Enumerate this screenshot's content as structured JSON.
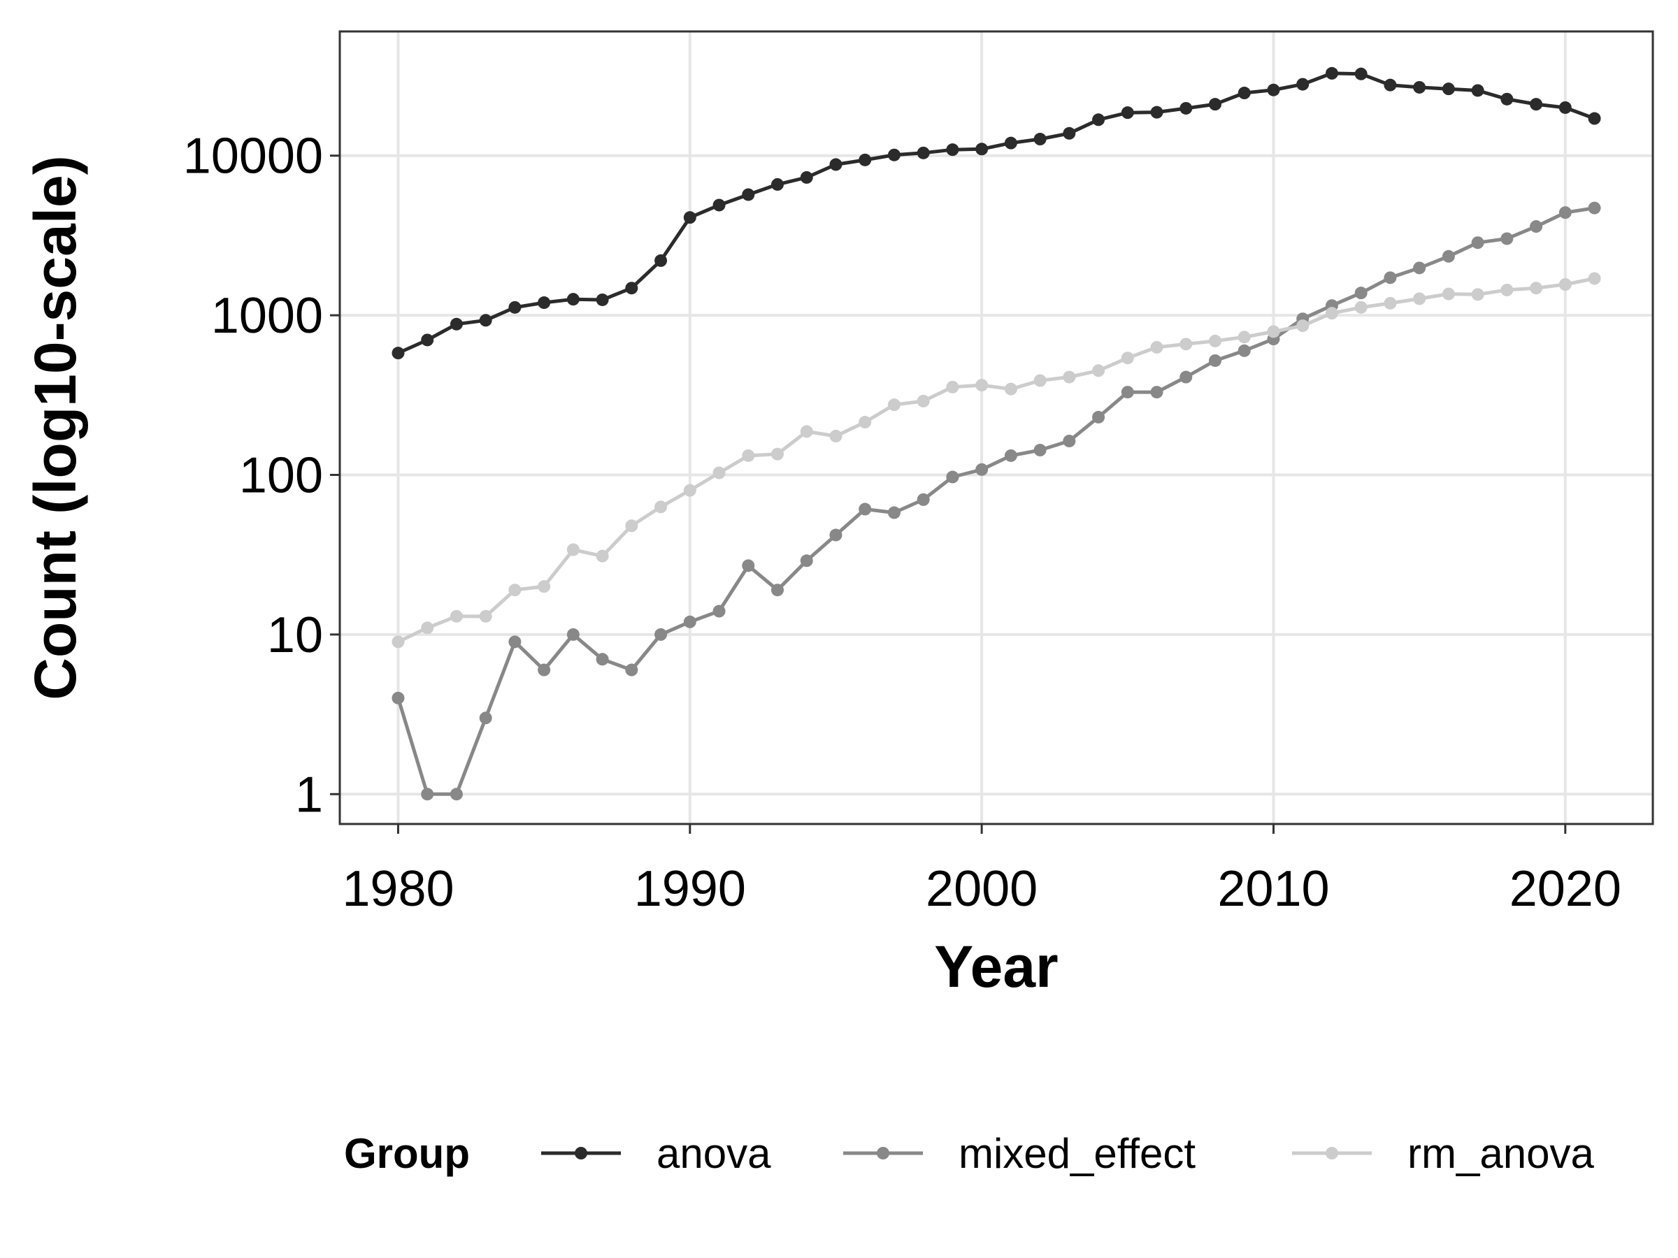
{
  "chart_data": {
    "type": "line",
    "xlabel": "Year",
    "ylabel": "Count (log10-scale)",
    "y_scale": "log10",
    "xlim": [
      1978,
      2023
    ],
    "ylim": [
      0.65,
      60000
    ],
    "x_ticks": [
      1980,
      1990,
      2000,
      2010,
      2020
    ],
    "x_tick_labels": [
      "1980",
      "1990",
      "2000",
      "2010",
      "2020"
    ],
    "y_ticks": [
      1,
      10,
      100,
      1000,
      10000
    ],
    "y_tick_labels": [
      "1",
      "10",
      "100",
      "1000",
      "10000"
    ],
    "grid": true,
    "legend": {
      "title": "Group",
      "placement": "bottom"
    },
    "x": [
      1980,
      1981,
      1982,
      1983,
      1984,
      1985,
      1986,
      1987,
      1988,
      1989,
      1990,
      1991,
      1992,
      1993,
      1994,
      1995,
      1996,
      1997,
      1998,
      1999,
      2000,
      2001,
      2002,
      2003,
      2004,
      2005,
      2006,
      2007,
      2008,
      2009,
      2010,
      2011,
      2012,
      2013,
      2014,
      2015,
      2016,
      2017,
      2018,
      2019,
      2020,
      2021
    ],
    "series": [
      {
        "name": "anova",
        "color": "#2b2b2b",
        "values": [
          580,
          700,
          880,
          930,
          1120,
          1200,
          1260,
          1250,
          1480,
          2200,
          4100,
          4900,
          5700,
          6600,
          7300,
          8800,
          9400,
          10100,
          10400,
          10900,
          11000,
          12000,
          12700,
          13800,
          16800,
          18600,
          18700,
          19800,
          21000,
          24700,
          25800,
          28000,
          32800,
          32500,
          27700,
          26800,
          26200,
          25600,
          22600,
          21000,
          20000,
          17100
        ]
      },
      {
        "name": "mixed_effect",
        "color": "#888888",
        "values": [
          4,
          1,
          1,
          3,
          9,
          6,
          10,
          7,
          6,
          10,
          12,
          14,
          27,
          19,
          29,
          42,
          61,
          58,
          70,
          97,
          108,
          132,
          143,
          163,
          230,
          330,
          330,
          410,
          520,
          600,
          710,
          950,
          1150,
          1380,
          1720,
          1980,
          2340,
          2850,
          3020,
          3600,
          4400,
          4700
        ]
      },
      {
        "name": "rm_anova",
        "color": "#cccccc",
        "values": [
          9,
          11,
          13,
          13,
          19,
          20,
          34,
          31,
          48,
          63,
          80,
          103,
          132,
          135,
          187,
          175,
          214,
          275,
          290,
          355,
          365,
          345,
          390,
          410,
          450,
          540,
          630,
          660,
          690,
          730,
          790,
          860,
          1030,
          1120,
          1190,
          1270,
          1360,
          1350,
          1440,
          1480,
          1560,
          1700
        ]
      }
    ]
  }
}
